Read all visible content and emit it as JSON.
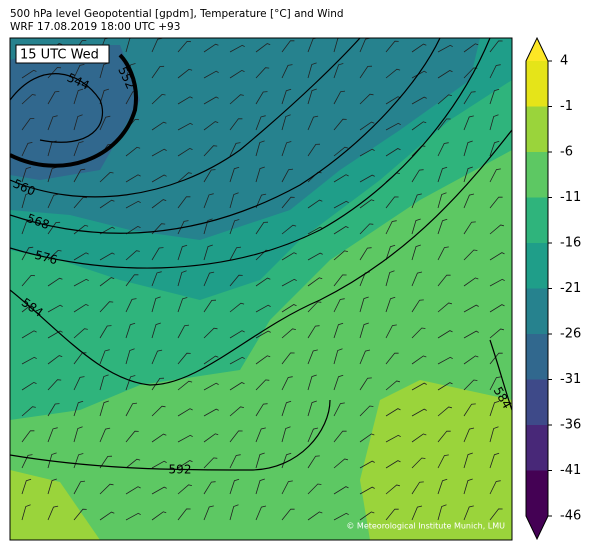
{
  "header": {
    "title": "500 hPa level Geopotential [gpdm], Temperature [°C] and Wind",
    "subtitle": "WRF 17.08.2019 18:00 UTC +93"
  },
  "map": {
    "time_label": "15 UTC Wed",
    "contour_labels": [
      "544",
      "552",
      "560",
      "568",
      "576",
      "584",
      "584",
      "592"
    ],
    "credit": "© Meteorological Institute Munich, LMU"
  },
  "colorbar": {
    "ticks": [
      4,
      -1,
      -6,
      -11,
      -16,
      -21,
      -26,
      -31,
      -36,
      -41,
      -46
    ],
    "colors": [
      "#440154",
      "#482878",
      "#3e4a89",
      "#31688e",
      "#26828e",
      "#1f9e89",
      "#2fb47c",
      "#5dc863",
      "#9ad43b",
      "#e5e419"
    ],
    "extend_low": "#440154",
    "extend_high": "#fde725"
  }
}
